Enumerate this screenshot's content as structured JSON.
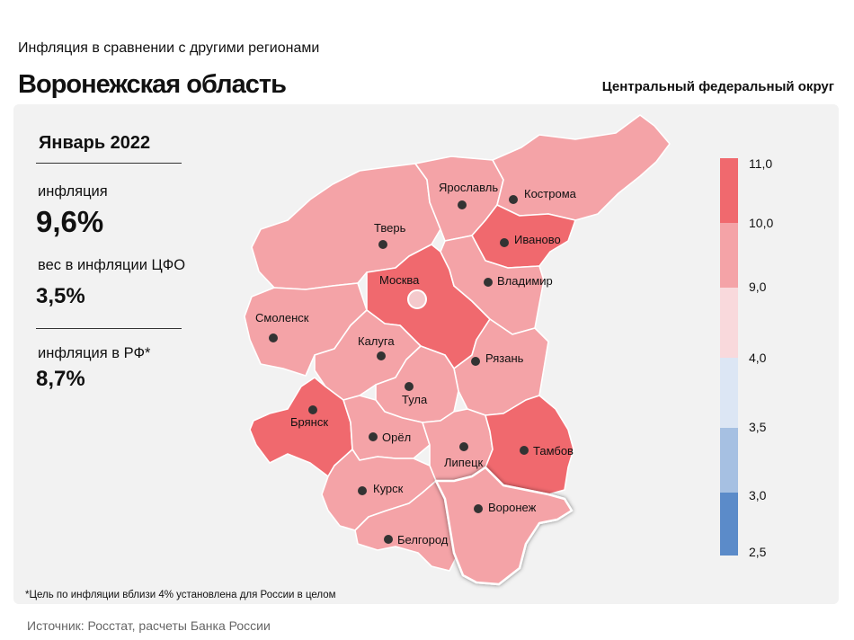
{
  "header": {
    "subtitle": "Инфляция в сравнении с другими регионами",
    "title": "Воронежская область",
    "district": "Центральный федеральный округ"
  },
  "stats": {
    "period": "Январь 2022",
    "inflation_label": "инфляция",
    "inflation_value": "9,6%",
    "weight_label": "вес в инфляции ЦФО",
    "weight_value": "3,5%",
    "russia_label": "инфляция в РФ*",
    "russia_value": "8,7%"
  },
  "colors": {
    "high": "#f0696e",
    "mid": "#f4a3a7",
    "low": "#f9d9dc",
    "blue_light": "#dce6f4",
    "blue_mid": "#a6c0e2",
    "blue_dark": "#5b8bc9",
    "highlight_border": "#ffffff"
  },
  "legend": {
    "values": [
      "11,0",
      "10,0",
      "9,0",
      "4,0",
      "3,5",
      "3,0",
      "2,5"
    ]
  },
  "regions": [
    {
      "name": "Ярославль",
      "category": "mid"
    },
    {
      "name": "Кострома",
      "category": "mid"
    },
    {
      "name": "Тверь",
      "category": "mid"
    },
    {
      "name": "Иваново",
      "category": "high"
    },
    {
      "name": "Москва",
      "category": "high"
    },
    {
      "name": "Владимир",
      "category": "mid"
    },
    {
      "name": "Смоленск",
      "category": "mid"
    },
    {
      "name": "Калуга",
      "category": "mid"
    },
    {
      "name": "Рязань",
      "category": "mid"
    },
    {
      "name": "Тула",
      "category": "mid"
    },
    {
      "name": "Брянск",
      "category": "high"
    },
    {
      "name": "Орёл",
      "category": "mid"
    },
    {
      "name": "Липецк",
      "category": "mid"
    },
    {
      "name": "Тамбов",
      "category": "high"
    },
    {
      "name": "Курск",
      "category": "mid"
    },
    {
      "name": "Воронеж",
      "category": "mid"
    },
    {
      "name": "Белгород",
      "category": "mid"
    }
  ],
  "footnote": "*Цель по инфляции вблизи 4% установлена для России в целом",
  "source": "Источник: Росстат, расчеты Банка России"
}
